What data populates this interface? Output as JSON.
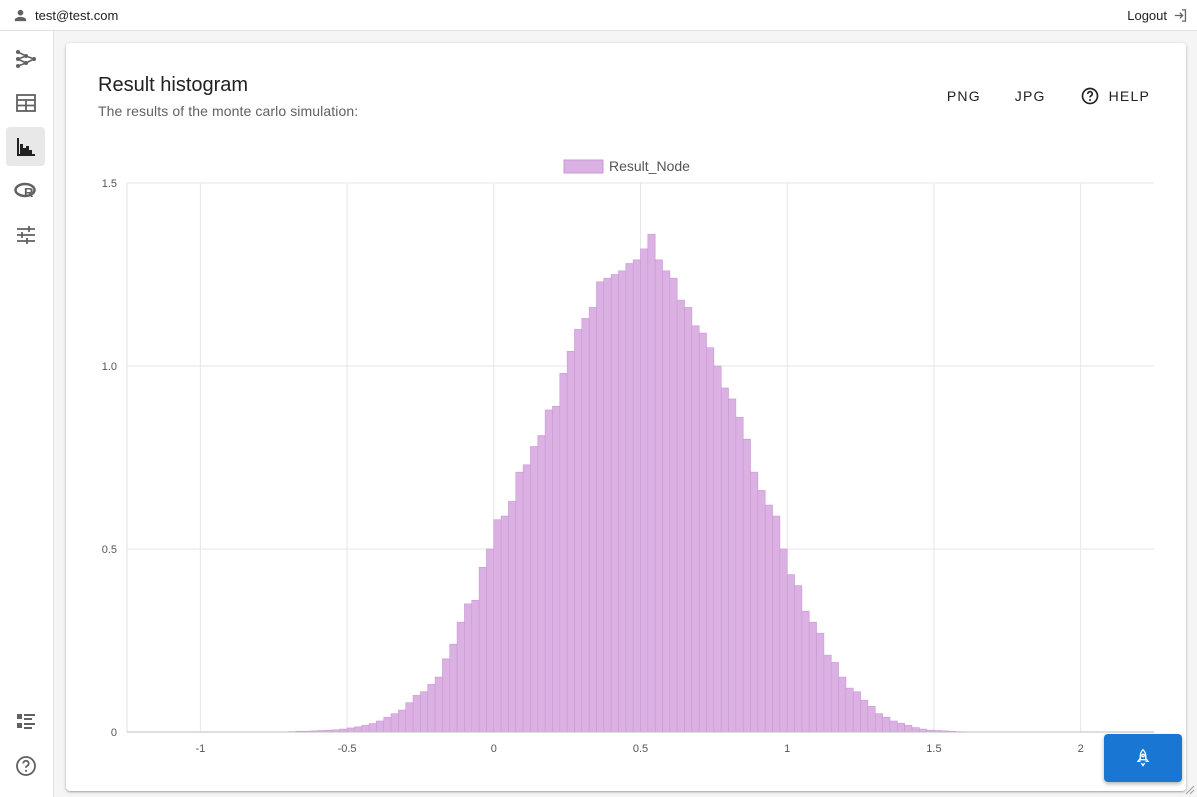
{
  "header": {
    "user_email": "test@test.com",
    "logout_label": "Logout"
  },
  "sidebar": {
    "items": [
      {
        "icon": "graph-nodes-icon",
        "active": false
      },
      {
        "icon": "table-icon",
        "active": false
      },
      {
        "icon": "histogram-icon",
        "active": true
      },
      {
        "icon": "r-language-icon",
        "active": false
      },
      {
        "icon": "tune-sliders-icon",
        "active": false
      }
    ],
    "bottom_items": [
      {
        "icon": "list-icon"
      },
      {
        "icon": "help-circle-icon"
      }
    ]
  },
  "card": {
    "title": "Result histogram",
    "subtitle": "The results of the monte carlo simulation:",
    "actions": {
      "png_label": "PNG",
      "jpg_label": "JPG",
      "help_label": "HELP"
    }
  },
  "colors": {
    "bar_fill": "#dbb1e4",
    "bar_stroke": "#c998d4",
    "fab": "#1976d2"
  },
  "chart_data": {
    "type": "bar",
    "title": "",
    "xlabel": "",
    "ylabel": "",
    "legend": {
      "position": "top-center",
      "entries": [
        "Result_Node"
      ]
    },
    "grid": true,
    "xlim": [
      -1.25,
      2.25
    ],
    "ylim": [
      0,
      1.5
    ],
    "xticks": [
      -1,
      -0.5,
      0,
      0.5,
      1,
      1.5,
      2
    ],
    "yticks": [
      0,
      0.5,
      1.0,
      1.5
    ],
    "ytick_labels": [
      "0",
      "0.5",
      "1.0",
      "1.5"
    ],
    "bin_width": 0.025,
    "series": [
      {
        "name": "Result_Node",
        "bin_start": [
          -0.7,
          -0.675,
          -0.65,
          -0.625,
          -0.6,
          -0.575,
          -0.55,
          -0.525,
          -0.5,
          -0.475,
          -0.45,
          -0.425,
          -0.4,
          -0.375,
          -0.35,
          -0.325,
          -0.3,
          -0.275,
          -0.25,
          -0.225,
          -0.2,
          -0.175,
          -0.15,
          -0.125,
          -0.1,
          -0.075,
          -0.05,
          -0.025,
          0,
          0.025,
          0.05,
          0.075,
          0.1,
          0.125,
          0.15,
          0.175,
          0.2,
          0.225,
          0.25,
          0.275,
          0.3,
          0.325,
          0.35,
          0.375,
          0.4,
          0.425,
          0.45,
          0.475,
          0.5,
          0.525,
          0.55,
          0.575,
          0.6,
          0.625,
          0.65,
          0.675,
          0.7,
          0.725,
          0.75,
          0.775,
          0.8,
          0.825,
          0.85,
          0.875,
          0.9,
          0.925,
          0.95,
          0.975,
          1.0,
          1.025,
          1.05,
          1.075,
          1.1,
          1.125,
          1.15,
          1.175,
          1.2,
          1.225,
          1.25,
          1.275,
          1.3,
          1.325,
          1.35,
          1.375,
          1.4,
          1.425,
          1.45,
          1.475,
          1.5,
          1.525,
          1.55,
          1.575
        ],
        "values": [
          0.001,
          0.002,
          0.002,
          0.003,
          0.004,
          0.005,
          0.006,
          0.008,
          0.011,
          0.014,
          0.018,
          0.023,
          0.03,
          0.04,
          0.05,
          0.06,
          0.08,
          0.1,
          0.11,
          0.13,
          0.15,
          0.2,
          0.24,
          0.3,
          0.35,
          0.36,
          0.45,
          0.5,
          0.58,
          0.59,
          0.63,
          0.71,
          0.73,
          0.78,
          0.81,
          0.88,
          0.89,
          0.98,
          1.04,
          1.1,
          1.13,
          1.16,
          1.23,
          1.24,
          1.25,
          1.26,
          1.28,
          1.29,
          1.32,
          1.36,
          1.29,
          1.26,
          1.24,
          1.18,
          1.16,
          1.11,
          1.09,
          1.05,
          1.0,
          0.94,
          0.91,
          0.86,
          0.8,
          0.71,
          0.66,
          0.62,
          0.59,
          0.5,
          0.43,
          0.4,
          0.33,
          0.3,
          0.27,
          0.21,
          0.19,
          0.15,
          0.12,
          0.11,
          0.087,
          0.07,
          0.05,
          0.04,
          0.03,
          0.024,
          0.018,
          0.012,
          0.008,
          0.005,
          0.004,
          0.003,
          0.002,
          0.001
        ]
      }
    ]
  },
  "fab": {
    "icon": "rocket-icon"
  }
}
